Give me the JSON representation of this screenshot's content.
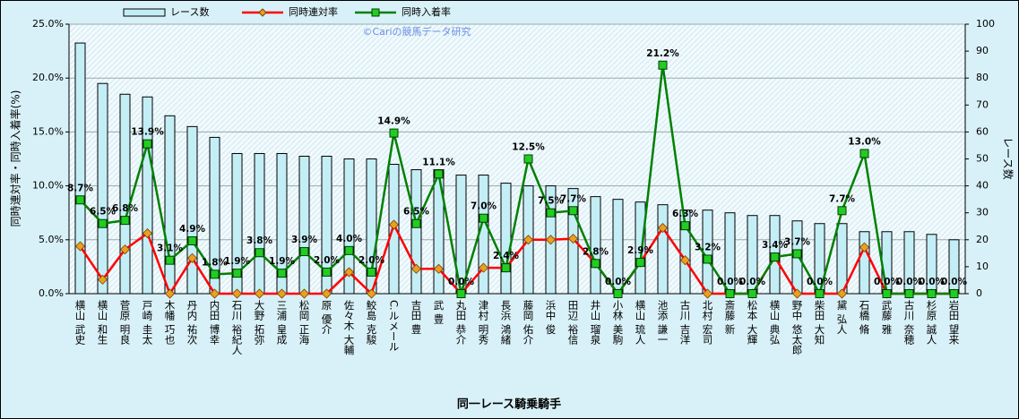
{
  "chart_data": {
    "type": "bar_line",
    "xlabel": "同一レース騎乗騎手",
    "ylabel": "同時連対率・同時入着率(%)",
    "y2label": "レース数",
    "annotation": "©Cariの競馬データ研究",
    "categories": [
      "横山 武史",
      "横山 和生",
      "菅原 明良",
      "戸崎 圭太",
      "木幡 巧也",
      "丹内 祐次",
      "内田 博幸",
      "石川 裕紀人",
      "大野 拓弥",
      "三浦 皇成",
      "松岡 正海",
      "原 優介",
      "佐々木 大輔",
      "鮫島 克駿",
      "C.ルメール",
      "吉田 豊",
      "武 豊",
      "丸田 恭介",
      "津村 明秀",
      "長浜 鴻緒",
      "藤岡 佑介",
      "浜中 俊",
      "田辺 裕信",
      "井山 瑠泉",
      "小林 美駒",
      "横山 琉人",
      "池添 謙一",
      "古川 吉洋",
      "北村 宏司",
      "斎藤 新",
      "松本 大輝",
      "横山 典弘",
      "野中 悠太郎",
      "柴田 大知",
      "黛 弘人",
      "石橋 脩",
      "武藤 雅",
      "古川 奈穂",
      "杉原 誠人",
      "岩田 望来"
    ],
    "series": [
      {
        "name": "レース数",
        "type": "bar",
        "axis": "y2",
        "color": "#c4eef6",
        "values": [
          93,
          78,
          74,
          73,
          66,
          62,
          58,
          52,
          52,
          52,
          51,
          51,
          50,
          50,
          48,
          46,
          46,
          44,
          44,
          41,
          40,
          40,
          39,
          36,
          35,
          34,
          33,
          31,
          31,
          30,
          29,
          29,
          27,
          26,
          26,
          23,
          23,
          23,
          22,
          20
        ]
      },
      {
        "name": "同時連対率",
        "type": "line",
        "color": "#ff0000",
        "marker_color": "#e8a020",
        "values": [
          4.4,
          1.3,
          4.1,
          5.6,
          0,
          3.3,
          0,
          0,
          0,
          0,
          0,
          0,
          2.0,
          0,
          6.4,
          2.3,
          2.3,
          0,
          2.4,
          2.4,
          5.0,
          5.0,
          5.1,
          2.8,
          0,
          2.9,
          6.1,
          3.1,
          0,
          0,
          0,
          3.4,
          0,
          0,
          0,
          4.3,
          0,
          0,
          0,
          0
        ]
      },
      {
        "name": "同時入着率",
        "type": "line",
        "color": "#008000",
        "marker_color": "#22cc22",
        "values": [
          8.7,
          6.5,
          6.8,
          13.9,
          3.1,
          4.9,
          1.8,
          1.9,
          3.8,
          1.9,
          3.9,
          2.0,
          4.0,
          2.0,
          14.9,
          6.5,
          11.1,
          0.0,
          7.0,
          2.4,
          12.5,
          7.5,
          7.7,
          2.8,
          0.0,
          2.9,
          21.2,
          6.3,
          3.2,
          0.0,
          0.0,
          3.4,
          3.7,
          0.0,
          7.7,
          13.0,
          0.0,
          0.0,
          0.0,
          0.0
        ],
        "value_labels": [
          "8.7%",
          "6.5%",
          "6.8%",
          "13.9%",
          "3.1%",
          "4.9%",
          "1.8%",
          "1.9%",
          "3.8%",
          "1.9%",
          "3.9%",
          "2.0%",
          "4.0%",
          "2.0%",
          "14.9%",
          "6.5%",
          "11.1%",
          "0.0%",
          "7.0%",
          "2.4%",
          "12.5%",
          "7.5%",
          "7.7%",
          "2.8%",
          "0.0%",
          "2.9%",
          "21.2%",
          "6.3%",
          "3.2%",
          "0.0%",
          "0.0%",
          "3.4%",
          "3.7%",
          "0.0%",
          "7.7%",
          "13.0%",
          "0.0%",
          "0.0%",
          "0.0%",
          "0.0%"
        ]
      }
    ],
    "ylim": [
      0,
      25
    ],
    "yticks": [
      {
        "value": 0,
        "label": "0.0%"
      },
      {
        "value": 5,
        "label": "5.0%"
      },
      {
        "value": 10,
        "label": "10.0%"
      },
      {
        "value": 15,
        "label": "15.0%"
      },
      {
        "value": 20,
        "label": "20.0%"
      },
      {
        "value": 25,
        "label": "25.0%"
      }
    ],
    "y2lim": [
      0,
      100
    ],
    "y2ticks": [
      0,
      10,
      20,
      30,
      40,
      50,
      60,
      70,
      80,
      90,
      100
    ],
    "grid": true,
    "legend": "top"
  }
}
